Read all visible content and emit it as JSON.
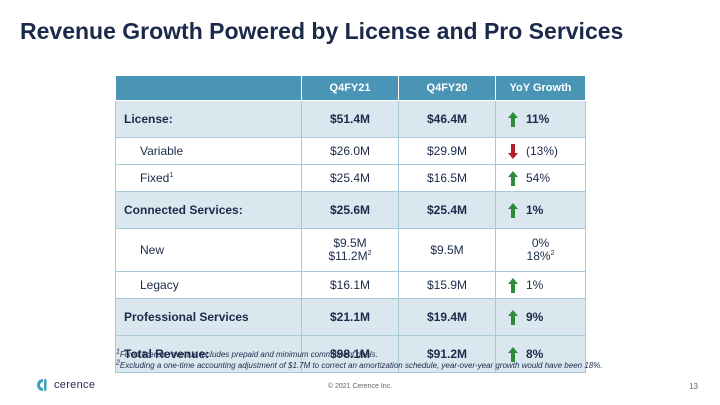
{
  "title": "Revenue Growth Powered by License and Pro Services",
  "table": {
    "headers": [
      "",
      "Q4FY21",
      "Q4FY20",
      "YoY Growth"
    ],
    "rows": {
      "license": {
        "label": "License:",
        "q4fy21": "$51.4M",
        "q4fy20": "$46.4M",
        "yoy": "11%",
        "direction": "up"
      },
      "variable": {
        "label": "Variable",
        "q4fy21": "$26.0M",
        "q4fy20": "$29.9M",
        "yoy": "(13%)",
        "direction": "down"
      },
      "fixed": {
        "label": "Fixed",
        "label_sup": "1",
        "q4fy21": "$25.4M",
        "q4fy20": "$16.5M",
        "yoy": "54%",
        "direction": "up"
      },
      "connected": {
        "label": "Connected Services:",
        "q4fy21": "$25.6M",
        "q4fy20": "$25.4M",
        "yoy": "1%",
        "direction": "up"
      },
      "new": {
        "label": "New",
        "q4fy21_line1": "$9.5M",
        "q4fy21_line2": "$11.2M",
        "q4fy21_sup": "2",
        "q4fy20": "$9.5M",
        "yoy_line1": "0%",
        "yoy_line2": "18%",
        "yoy_sup": "2"
      },
      "legacy": {
        "label": "Legacy",
        "q4fy21": "$16.1M",
        "q4fy20": "$15.9M",
        "yoy": "1%",
        "direction": "up"
      },
      "professional": {
        "label": "Professional Services",
        "q4fy21": "$21.1M",
        "q4fy20": "$19.4M",
        "yoy": "9%",
        "direction": "up"
      },
      "total": {
        "label": "Total Revenue:",
        "q4fy21": "$98.1M",
        "q4fy20": "$91.2M",
        "yoy": "8%",
        "direction": "up"
      }
    }
  },
  "footnotes": {
    "note1_marker": "1",
    "note1": "Fixed license revenue includes prepaid and minimum commitment deals.",
    "note2_marker": "2",
    "note2": "Excluding a one-time accounting adjustment of $1.7M to correct an amortization schedule, year-over-year growth would have been 18%."
  },
  "footer": {
    "logo_text": "cerence",
    "copyright": "© 2021 Cerence Inc.",
    "page_number": "13"
  },
  "colors": {
    "header_bg": "#4a95b5",
    "group_row_bg": "#dbe7ef",
    "up_arrow": "#2e8b3a",
    "down_arrow": "#b0202a",
    "title": "#1b2a4a",
    "logo_teal": "#3a9fb8"
  }
}
